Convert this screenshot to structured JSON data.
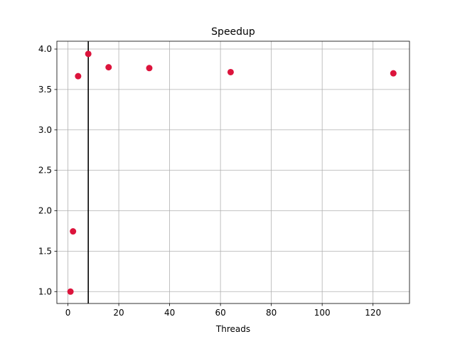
{
  "chart_data": {
    "type": "scatter",
    "title": "Speedup",
    "xlabel": "Threads",
    "ylabel": "",
    "xlim": [
      -4.35,
      134.35
    ],
    "ylim": [
      0.853,
      4.097
    ],
    "x_ticks": [
      0,
      20,
      40,
      60,
      80,
      100,
      120
    ],
    "y_ticks": [
      1.0,
      1.5,
      2.0,
      2.5,
      3.0,
      3.5,
      4.0
    ],
    "x_tick_labels": [
      "0",
      "20",
      "40",
      "60",
      "80",
      "100",
      "120"
    ],
    "y_tick_labels": [
      "1.0",
      "1.5",
      "2.0",
      "2.5",
      "3.0",
      "3.5",
      "4.0"
    ],
    "grid": true,
    "vline_x": 8,
    "vline_color": "#000000",
    "marker_color": "#dc143c",
    "series": [
      {
        "x": [
          1,
          2,
          4,
          8,
          16,
          32,
          64,
          128
        ],
        "y": [
          1.0,
          1.745,
          3.665,
          3.94,
          3.775,
          3.765,
          3.715,
          3.7
        ]
      }
    ]
  }
}
